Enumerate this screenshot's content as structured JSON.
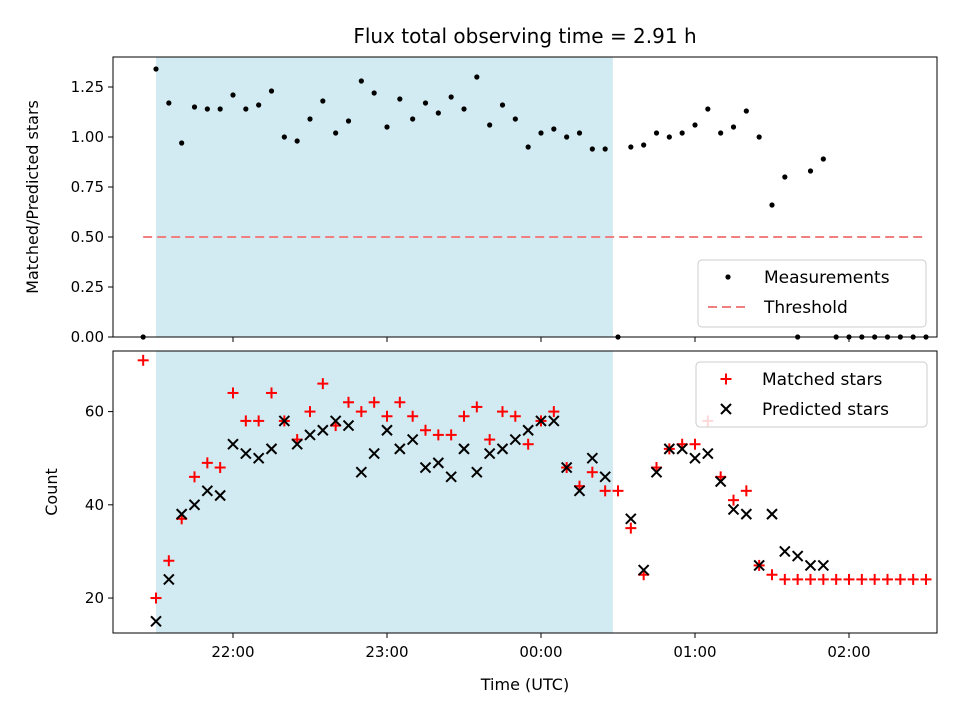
{
  "title": "Flux total observing time = 2.91 h",
  "shaded_region": {
    "x_start": "21:30",
    "x_end": "00:28",
    "color": "#add8e6"
  },
  "chart_data": [
    {
      "type": "scatter",
      "ylabel": "Matched/Predicted stars",
      "xlabel": "",
      "ylim": [
        0,
        1.4
      ],
      "yticks": [
        "0.00",
        "0.25",
        "0.50",
        "0.75",
        "1.00",
        "1.25"
      ],
      "legend_position": "lower right",
      "series": [
        {
          "name": "Measurements",
          "marker": "dot",
          "color": "#000000",
          "x": [
            "21:25",
            "21:30",
            "21:35",
            "21:40",
            "21:45",
            "21:50",
            "21:55",
            "22:00",
            "22:05",
            "22:10",
            "22:15",
            "22:20",
            "22:25",
            "22:30",
            "22:35",
            "22:40",
            "22:45",
            "22:50",
            "22:55",
            "23:00",
            "23:05",
            "23:10",
            "23:15",
            "23:20",
            "23:25",
            "23:30",
            "23:35",
            "23:40",
            "23:45",
            "23:50",
            "23:55",
            "00:00",
            "00:05",
            "00:10",
            "00:15",
            "00:20",
            "00:25",
            "00:30",
            "00:35",
            "00:40",
            "00:45",
            "00:50",
            "00:55",
            "01:00",
            "01:05",
            "01:10",
            "01:15",
            "01:20",
            "01:25",
            "01:30",
            "01:35",
            "01:40",
            "01:45",
            "01:50",
            "01:55",
            "02:00",
            "02:05",
            "02:10",
            "02:15",
            "02:20",
            "02:25",
            "02:30"
          ],
          "y": [
            0,
            1.34,
            1.17,
            0.97,
            1.15,
            1.14,
            1.14,
            1.21,
            1.14,
            1.16,
            1.23,
            1.0,
            0.98,
            1.09,
            1.18,
            1.02,
            1.08,
            1.28,
            1.22,
            1.05,
            1.19,
            1.09,
            1.17,
            1.12,
            1.2,
            1.14,
            1.3,
            1.06,
            1.16,
            1.09,
            0.95,
            1.02,
            1.04,
            1.0,
            1.02,
            0.94,
            0.94,
            0,
            0.95,
            0.96,
            1.02,
            1.0,
            1.02,
            1.06,
            1.14,
            1.02,
            1.05,
            1.13,
            1.0,
            0.66,
            0.8,
            0,
            0.83,
            0.89,
            0,
            0,
            0,
            0,
            0,
            0,
            0,
            0
          ]
        },
        {
          "name": "Threshold",
          "marker": "dashed-line",
          "color": "#f08080",
          "x": [
            "21:25",
            "02:30"
          ],
          "y": [
            0.5,
            0.5
          ]
        }
      ]
    },
    {
      "type": "scatter",
      "ylabel": "Count",
      "xlabel": "Time (UTC)",
      "ylim": [
        12.5,
        73
      ],
      "yticks": [
        "20",
        "40",
        "60"
      ],
      "xticks": [
        "22:00",
        "23:00",
        "00:00",
        "01:00",
        "02:00"
      ],
      "legend_position": "upper right",
      "series": [
        {
          "name": "Matched stars",
          "marker": "plus",
          "color": "#ff0000",
          "x": [
            "21:25",
            "21:30",
            "21:35",
            "21:40",
            "21:45",
            "21:50",
            "21:55",
            "22:00",
            "22:05",
            "22:10",
            "22:15",
            "22:20",
            "22:25",
            "22:30",
            "22:35",
            "22:40",
            "22:45",
            "22:50",
            "22:55",
            "23:00",
            "23:05",
            "23:10",
            "23:15",
            "23:20",
            "23:25",
            "23:30",
            "23:35",
            "23:40",
            "23:45",
            "23:50",
            "23:55",
            "00:00",
            "00:05",
            "00:10",
            "00:15",
            "00:20",
            "00:25",
            "00:30",
            "00:35",
            "00:40",
            "00:45",
            "00:50",
            "00:55",
            "01:00",
            "01:05",
            "01:10",
            "01:15",
            "01:20",
            "01:25",
            "01:30",
            "01:35",
            "01:40",
            "01:45",
            "01:50",
            "01:55",
            "02:00",
            "02:05",
            "02:10",
            "02:15",
            "02:20",
            "02:25",
            "02:30"
          ],
          "y": [
            71,
            20,
            28,
            37,
            46,
            49,
            48,
            64,
            58,
            58,
            64,
            58,
            54,
            60,
            66,
            57,
            62,
            60,
            62,
            59,
            62,
            59,
            56,
            55,
            55,
            59,
            61,
            54,
            60,
            59,
            53,
            58,
            60,
            48,
            44,
            47,
            43,
            43,
            35,
            25,
            48,
            52,
            53,
            53,
            58,
            46,
            41,
            43,
            27,
            25,
            24,
            24,
            24,
            24,
            24,
            24,
            24,
            24,
            24,
            24,
            24,
            24
          ]
        },
        {
          "name": "Predicted stars",
          "marker": "x",
          "color": "#000000",
          "x": [
            "21:30",
            "21:35",
            "21:40",
            "21:45",
            "21:50",
            "21:55",
            "22:00",
            "22:05",
            "22:10",
            "22:15",
            "22:20",
            "22:25",
            "22:30",
            "22:35",
            "22:40",
            "22:45",
            "22:50",
            "22:55",
            "23:00",
            "23:05",
            "23:10",
            "23:15",
            "23:20",
            "23:25",
            "23:30",
            "23:35",
            "23:40",
            "23:45",
            "23:50",
            "23:55",
            "00:00",
            "00:05",
            "00:10",
            "00:15",
            "00:20",
            "00:25",
            "00:35",
            "00:40",
            "00:45",
            "00:50",
            "00:55",
            "01:00",
            "01:05",
            "01:10",
            "01:15",
            "01:20",
            "01:25",
            "01:30",
            "01:35",
            "01:40",
            "01:45",
            "01:50"
          ],
          "y": [
            15,
            24,
            38,
            40,
            43,
            42,
            53,
            51,
            50,
            52,
            58,
            53,
            55,
            56,
            58,
            57,
            47,
            51,
            56,
            52,
            54,
            48,
            49,
            46,
            52,
            47,
            51,
            52,
            54,
            56,
            58,
            58,
            48,
            43,
            50,
            46,
            37,
            26,
            47,
            52,
            52,
            50,
            51,
            45,
            39,
            38,
            27,
            38,
            30,
            29,
            27,
            27
          ]
        }
      ]
    }
  ]
}
